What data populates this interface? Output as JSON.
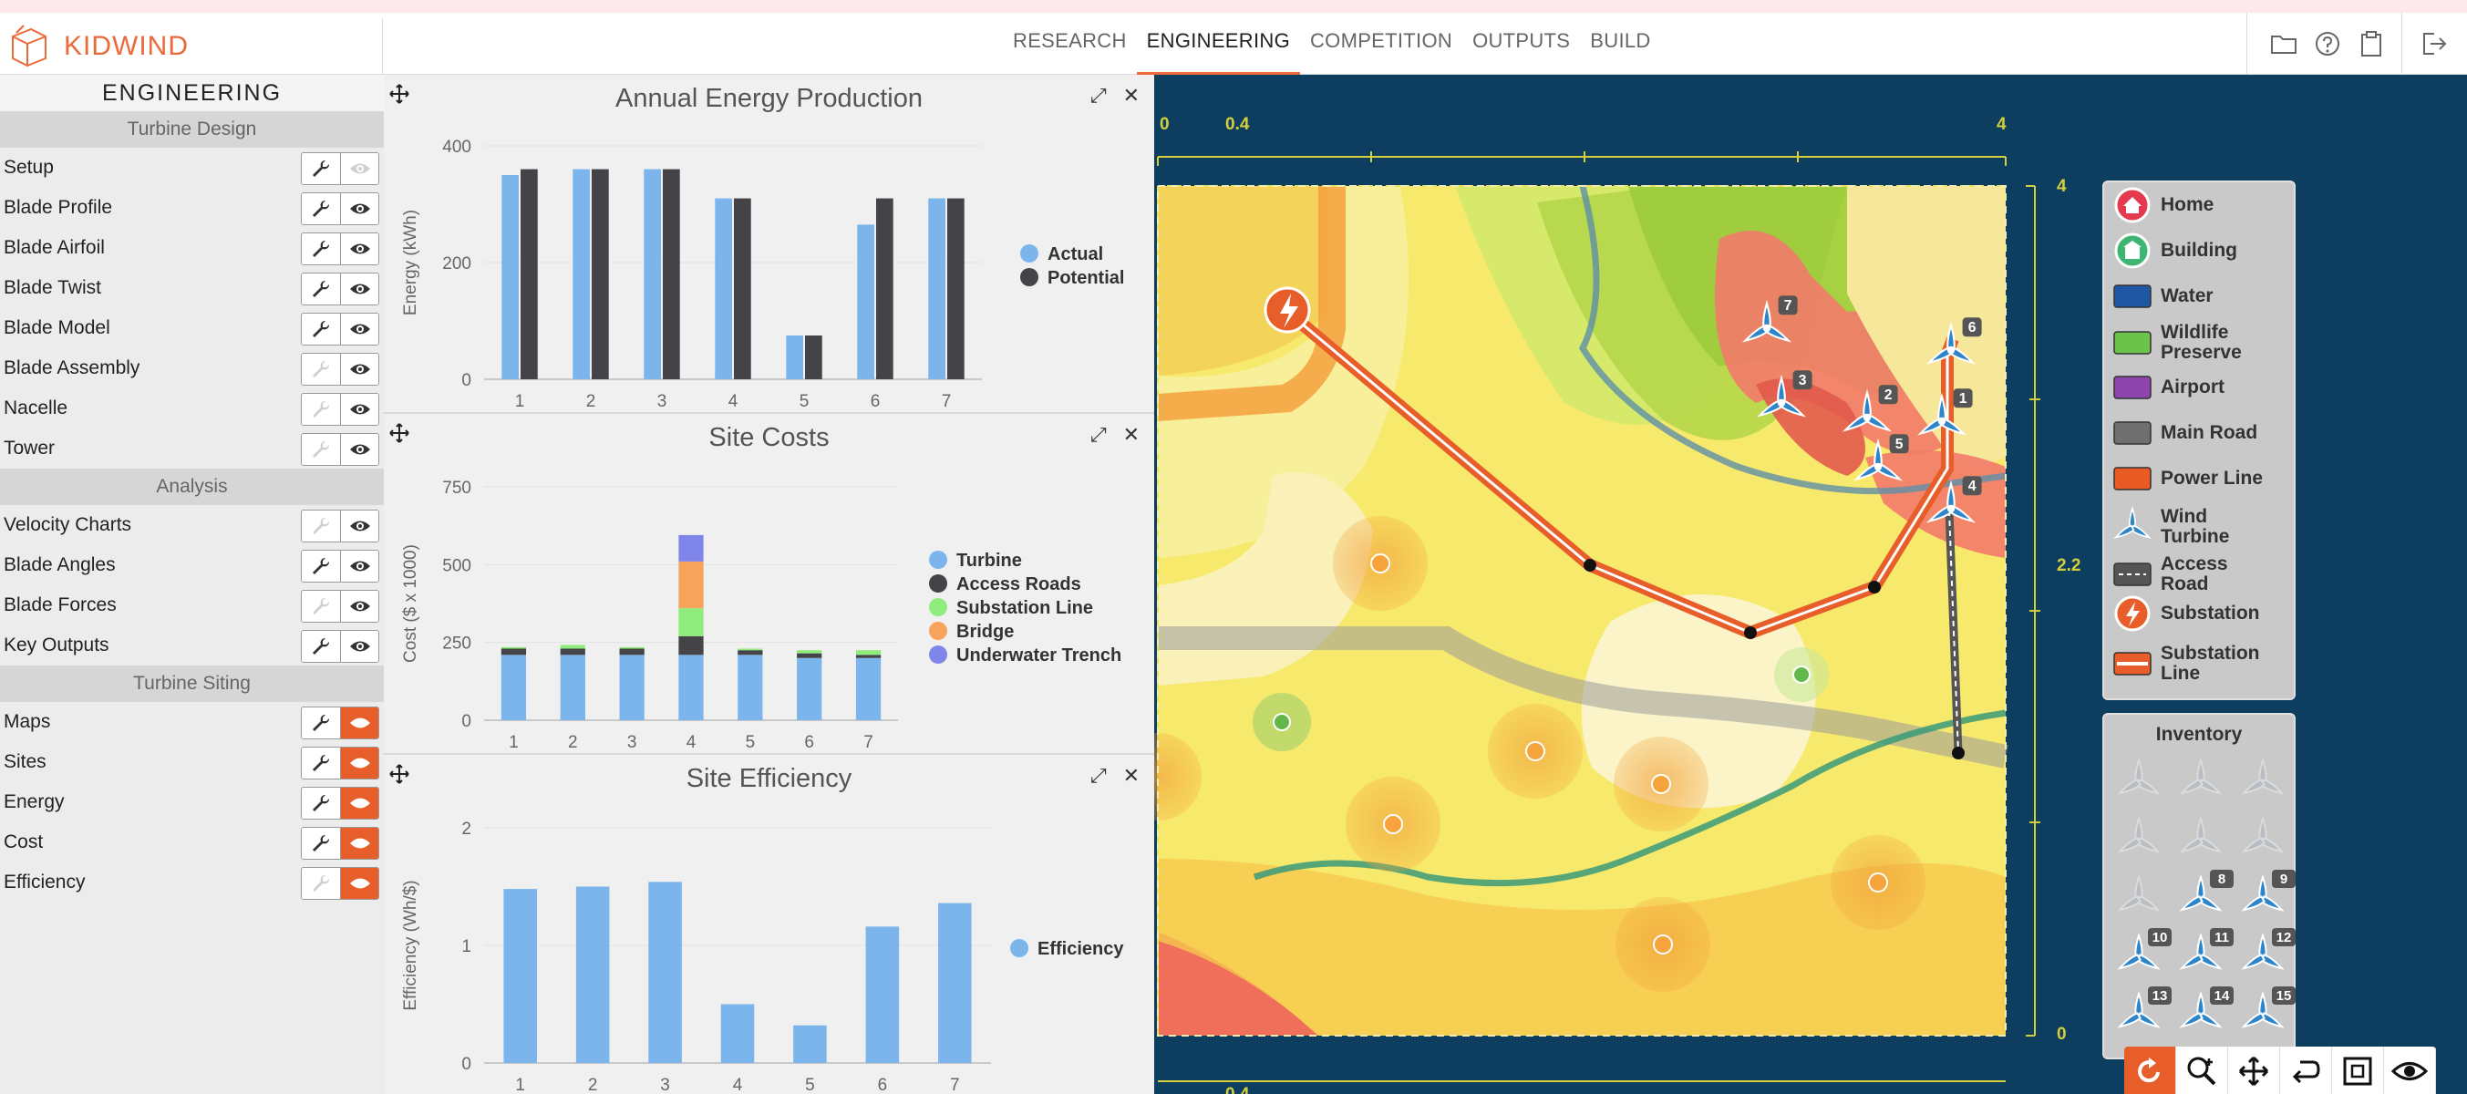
{
  "app": {
    "brand": "KIDWIND"
  },
  "nav": {
    "tabs": [
      "RESEARCH",
      "ENGINEERING",
      "COMPETITION",
      "OUTPUTS",
      "BUILD"
    ],
    "active": "ENGINEERING"
  },
  "sidebar": {
    "title": "ENGINEERING",
    "sections": [
      {
        "title": "Turbine Design",
        "items": [
          {
            "label": "Setup",
            "wrench_enabled": true,
            "eye_enabled": false,
            "active": false
          },
          {
            "label": "Blade Profile",
            "wrench_enabled": true,
            "eye_enabled": true,
            "active": false
          },
          {
            "label": "Blade Airfoil",
            "wrench_enabled": true,
            "eye_enabled": true,
            "active": false
          },
          {
            "label": "Blade Twist",
            "wrench_enabled": true,
            "eye_enabled": true,
            "active": false
          },
          {
            "label": "Blade Model",
            "wrench_enabled": true,
            "eye_enabled": true,
            "active": false
          },
          {
            "label": "Blade Assembly",
            "wrench_enabled": false,
            "eye_enabled": true,
            "active": false
          },
          {
            "label": "Nacelle",
            "wrench_enabled": false,
            "eye_enabled": true,
            "active": false
          },
          {
            "label": "Tower",
            "wrench_enabled": false,
            "eye_enabled": true,
            "active": false
          }
        ]
      },
      {
        "title": "Analysis",
        "items": [
          {
            "label": "Velocity Charts",
            "wrench_enabled": false,
            "eye_enabled": true,
            "active": false
          },
          {
            "label": "Blade Angles",
            "wrench_enabled": true,
            "eye_enabled": true,
            "active": false
          },
          {
            "label": "Blade Forces",
            "wrench_enabled": false,
            "eye_enabled": true,
            "active": false
          },
          {
            "label": "Key Outputs",
            "wrench_enabled": true,
            "eye_enabled": true,
            "active": false
          }
        ]
      },
      {
        "title": "Turbine Siting",
        "items": [
          {
            "label": "Maps",
            "wrench_enabled": true,
            "eye_enabled": true,
            "active": true
          },
          {
            "label": "Sites",
            "wrench_enabled": true,
            "eye_enabled": true,
            "active": true
          },
          {
            "label": "Energy",
            "wrench_enabled": true,
            "eye_enabled": true,
            "active": true
          },
          {
            "label": "Cost",
            "wrench_enabled": true,
            "eye_enabled": true,
            "active": true
          },
          {
            "label": "Efficiency",
            "wrench_enabled": false,
            "eye_enabled": true,
            "active": true
          }
        ]
      }
    ]
  },
  "colors": {
    "accent": "#e85e2a",
    "blue": "#7cb5ec",
    "dark": "#434348",
    "green": "#90ed7d",
    "orange": "#f7a35c",
    "purple": "#8085e9",
    "map_bg": "#0e3e5f",
    "grid_line": "#d4cf3a"
  },
  "chart_data": [
    {
      "type": "bar",
      "title": "Annual Energy Production",
      "ylabel": "Energy (kWh)",
      "categories": [
        "1",
        "2",
        "3",
        "4",
        "5",
        "6",
        "7"
      ],
      "ylim": [
        0,
        400
      ],
      "yticks": [
        0,
        200,
        400
      ],
      "series": [
        {
          "name": "Actual",
          "color": "#7cb5ec",
          "values": [
            350,
            360,
            360,
            310,
            75,
            265,
            310
          ]
        },
        {
          "name": "Potential",
          "color": "#434348",
          "values": [
            360,
            360,
            360,
            310,
            75,
            310,
            310
          ]
        }
      ],
      "legend": "right"
    },
    {
      "type": "bar",
      "stacked": true,
      "title": "Site Costs",
      "ylabel": "Cost ($ x 1000)",
      "categories": [
        "1",
        "2",
        "3",
        "4",
        "5",
        "6",
        "7"
      ],
      "ylim": [
        0,
        750
      ],
      "yticks": [
        0,
        250,
        500,
        750
      ],
      "series": [
        {
          "name": "Turbine",
          "color": "#7cb5ec",
          "values": [
            210,
            210,
            210,
            210,
            210,
            200,
            200
          ]
        },
        {
          "name": "Access Roads",
          "color": "#434348",
          "values": [
            20,
            20,
            20,
            60,
            15,
            15,
            10
          ]
        },
        {
          "name": "Substation Line",
          "color": "#90ed7d",
          "values": [
            5,
            12,
            5,
            90,
            5,
            10,
            15
          ]
        },
        {
          "name": "Bridge",
          "color": "#f7a35c",
          "values": [
            0,
            0,
            0,
            150,
            0,
            0,
            0
          ]
        },
        {
          "name": "Underwater Trench",
          "color": "#8085e9",
          "values": [
            0,
            0,
            0,
            85,
            0,
            0,
            0
          ]
        }
      ],
      "legend": "right"
    },
    {
      "type": "bar",
      "title": "Site Efficiency",
      "ylabel": "Efficiency (Wh/$)",
      "categories": [
        "1",
        "2",
        "3",
        "4",
        "5",
        "6",
        "7"
      ],
      "ylim": [
        0,
        2
      ],
      "yticks": [
        0,
        1,
        2
      ],
      "series": [
        {
          "name": "Efficiency",
          "color": "#7cb5ec",
          "values": [
            1.48,
            1.5,
            1.54,
            0.5,
            0.32,
            1.16,
            1.36
          ]
        }
      ],
      "legend": "right"
    }
  ],
  "map": {
    "top_axis": [
      "0",
      "0.4",
      "4"
    ],
    "bottom_axis": [
      "0.4"
    ],
    "right_axis": [
      "4",
      "2.2",
      "0"
    ],
    "turbine_labels": [
      "7",
      "3",
      "2",
      "1",
      "6",
      "5",
      "4"
    ],
    "legend": [
      "Home",
      "Building",
      "Water",
      "Wildlife Preserve",
      "Airport",
      "Main Road",
      "Power Line",
      "Wind Turbine",
      "Access Road",
      "Substation",
      "Substation Line"
    ],
    "inventory_title": "Inventory",
    "inventory_numbers": [
      "8",
      "9",
      "10",
      "11",
      "12",
      "13",
      "14",
      "15"
    ],
    "tools": [
      "rotate-icon",
      "zoom-in-icon",
      "pan-icon",
      "undo-icon",
      "fit-view-icon",
      "eye-icon"
    ]
  }
}
